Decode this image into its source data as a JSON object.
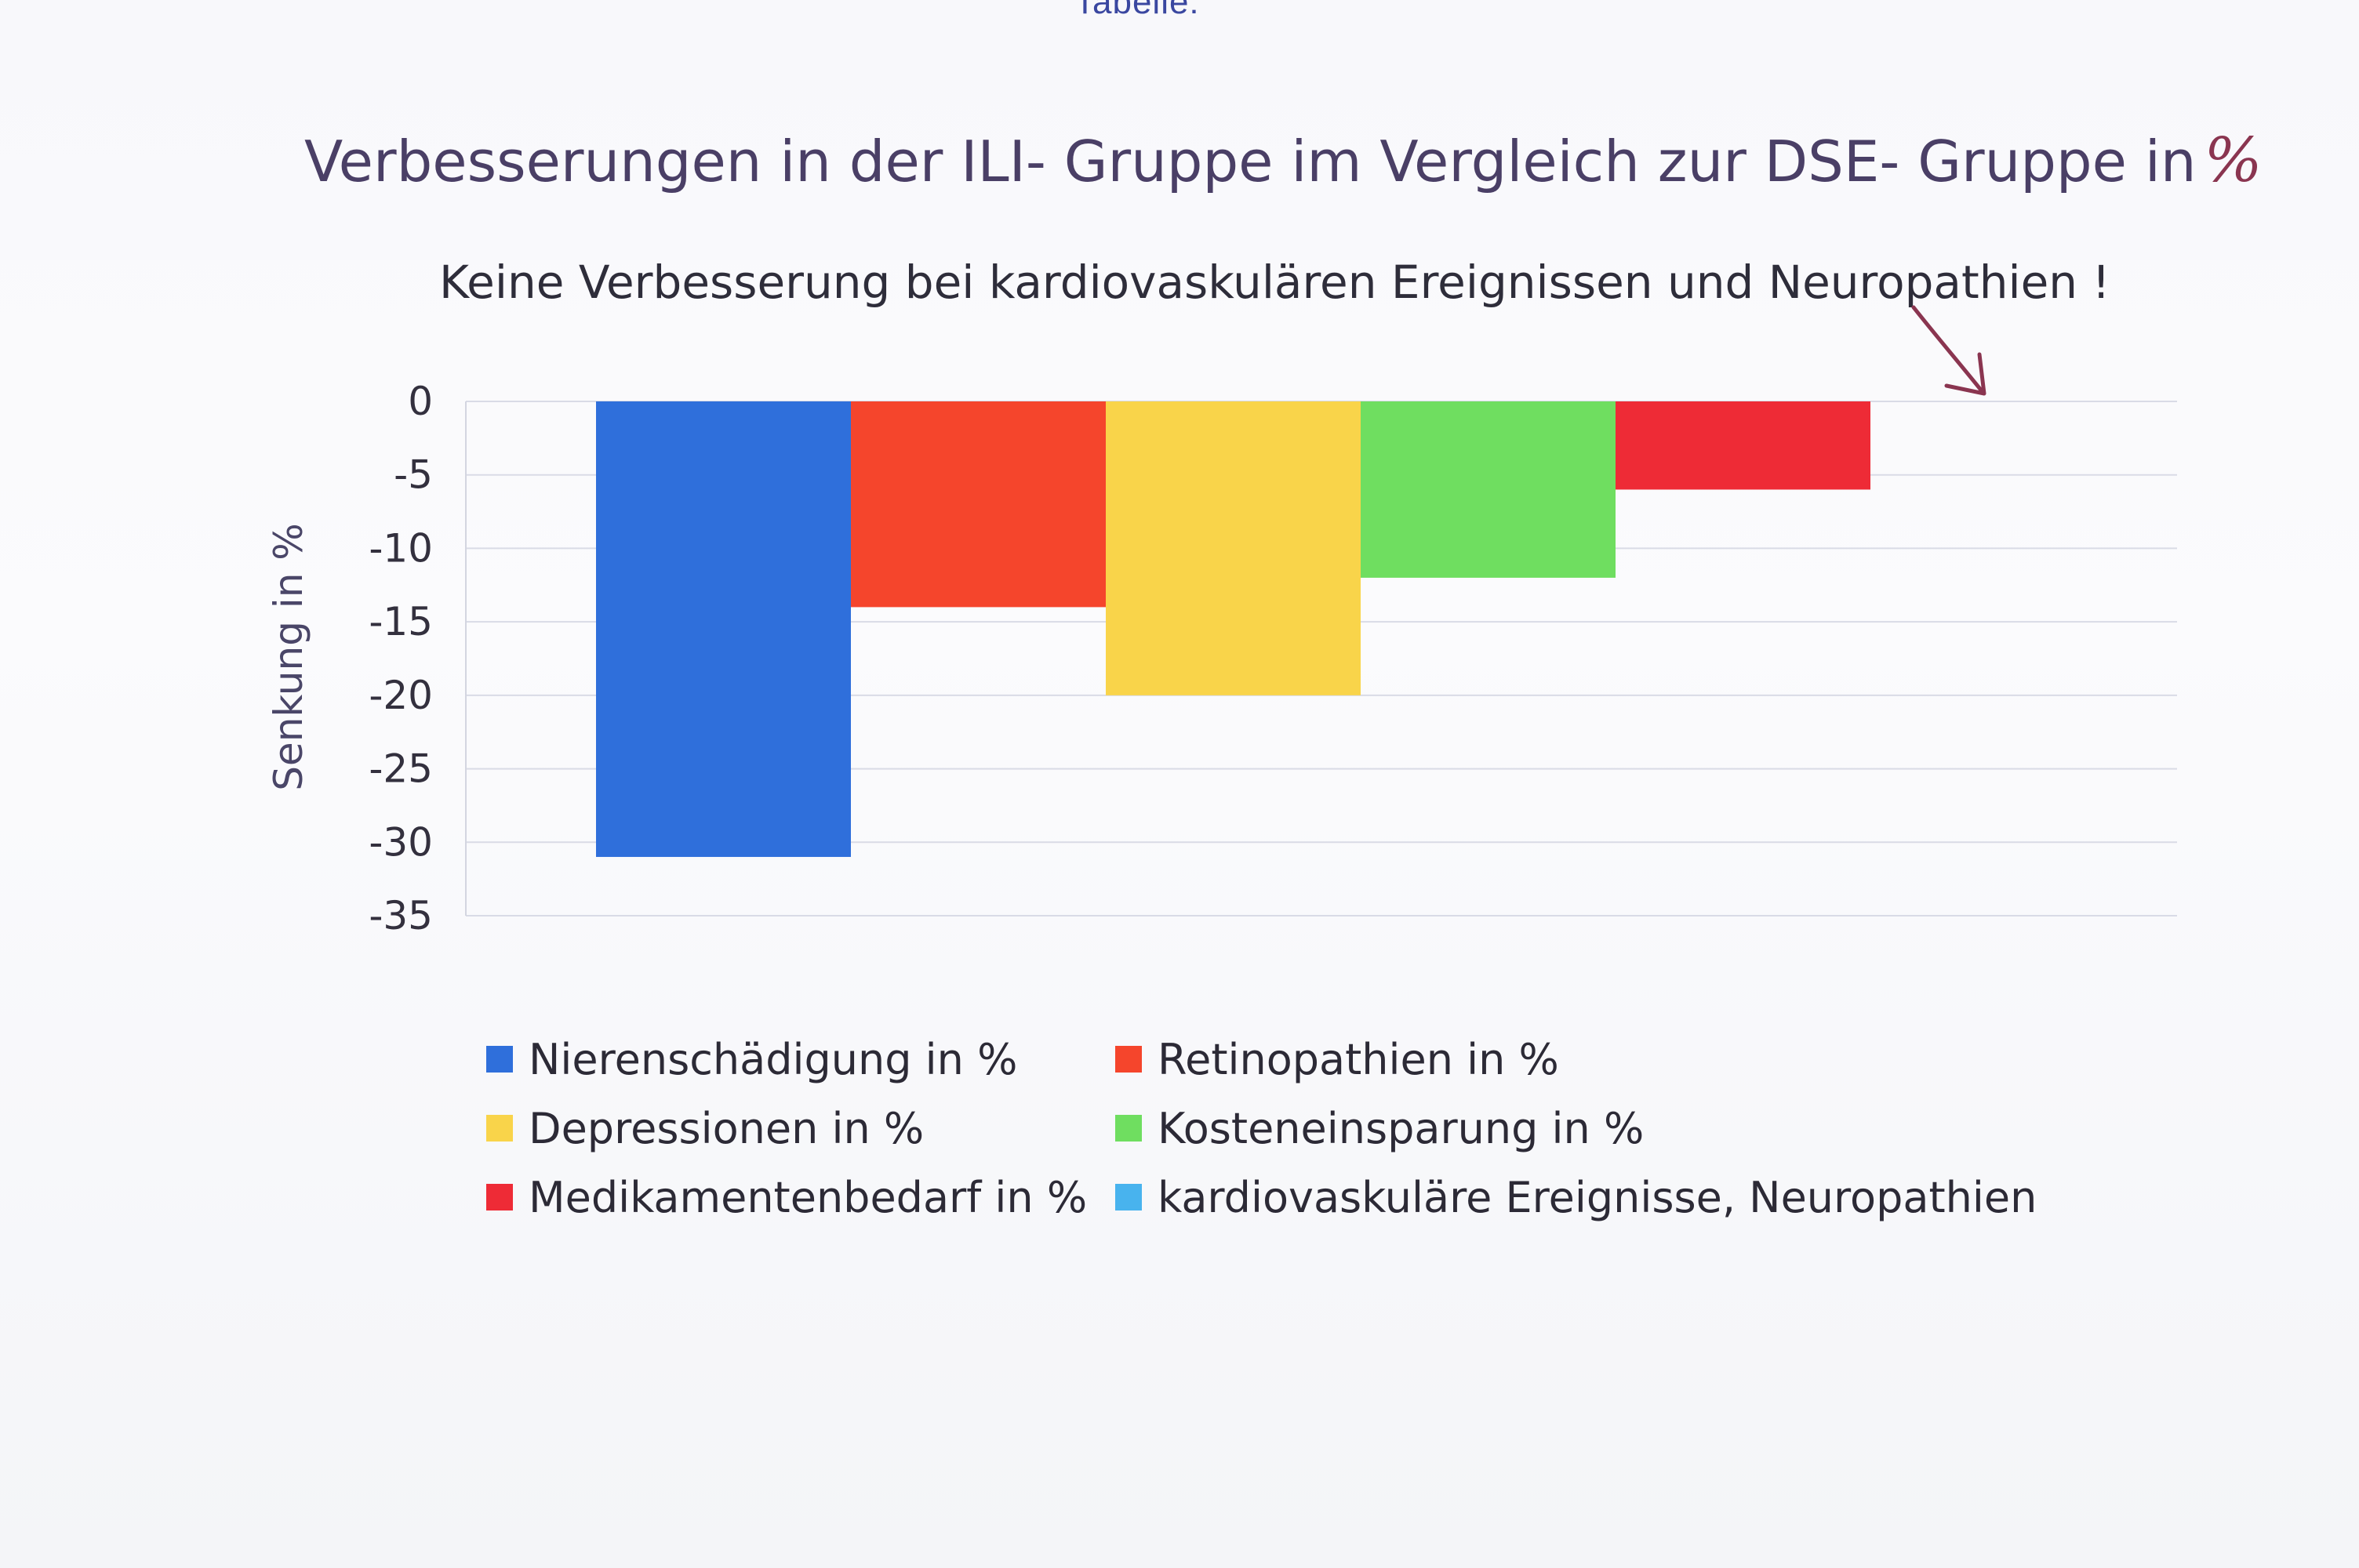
{
  "page": {
    "top_cut_text": "Tabelle:"
  },
  "chart_data": {
    "type": "bar",
    "title": "Verbesserungen in der ILI- Gruppe im Vergleich zur DSE- Gruppe in",
    "title_handwritten_suffix": "%",
    "subtitle": "Keine Verbesserung bei kardiovaskulären Ereignissen und Neuropathien !",
    "xlabel": "",
    "ylabel": "Senkung in %",
    "ylim": [
      -35,
      0
    ],
    "yticks": [
      0,
      -5,
      -10,
      -15,
      -20,
      -25,
      -30,
      -35
    ],
    "grid": true,
    "legend_placement": "bottom",
    "series": [
      {
        "name": "Nierenschädigung in %",
        "value": -31,
        "color": "#2f6fdb"
      },
      {
        "name": "Retinopathien in %",
        "value": -14,
        "color": "#f5452c"
      },
      {
        "name": "Depressionen in %",
        "value": -20,
        "color": "#f9d44a"
      },
      {
        "name": "Kosteneinsparung in %",
        "value": -12,
        "color": "#6fde60"
      },
      {
        "name": "Medikamentenbedarf in %",
        "value": -6,
        "color": "#ee2b36"
      },
      {
        "name": "kardiovaskuläre Ereignisse, Neuropathien",
        "value": 0,
        "color": "#48b3ee"
      }
    ],
    "legend_order": [
      0,
      1,
      2,
      3,
      4,
      5
    ],
    "annotation_arrow_color": "#8a3550"
  }
}
